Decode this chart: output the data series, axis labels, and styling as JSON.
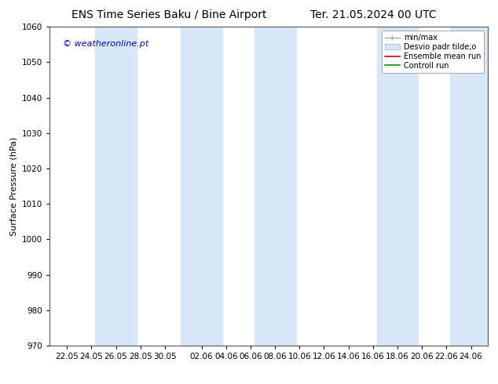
{
  "title_left": "ENS Time Series Baku / Bine Airport",
  "title_right": "Ter. 21.05.2024 00 UTC",
  "ylabel": "Surface Pressure (hPa)",
  "ylim": [
    970,
    1060
  ],
  "yticks": [
    970,
    980,
    990,
    1000,
    1010,
    1020,
    1030,
    1040,
    1050,
    1060
  ],
  "x_labels": [
    "22.05",
    "24.05",
    "26.05",
    "28.05",
    "30.05",
    "",
    "02.06",
    "04.06",
    "06.06",
    "08.06",
    "10.06",
    "12.06",
    "14.06",
    "16.06",
    "18.06",
    "20.06",
    "22.06",
    "24.06"
  ],
  "watermark": "© weatheronline.pt",
  "background_color": "#ffffff",
  "band_color": "#d6e8f7",
  "title_fontsize": 10,
  "ylabel_fontsize": 8,
  "tick_fontsize": 7.5,
  "watermark_color": "#0000cc",
  "watermark_fontsize": 8,
  "legend_fontsize": 7
}
